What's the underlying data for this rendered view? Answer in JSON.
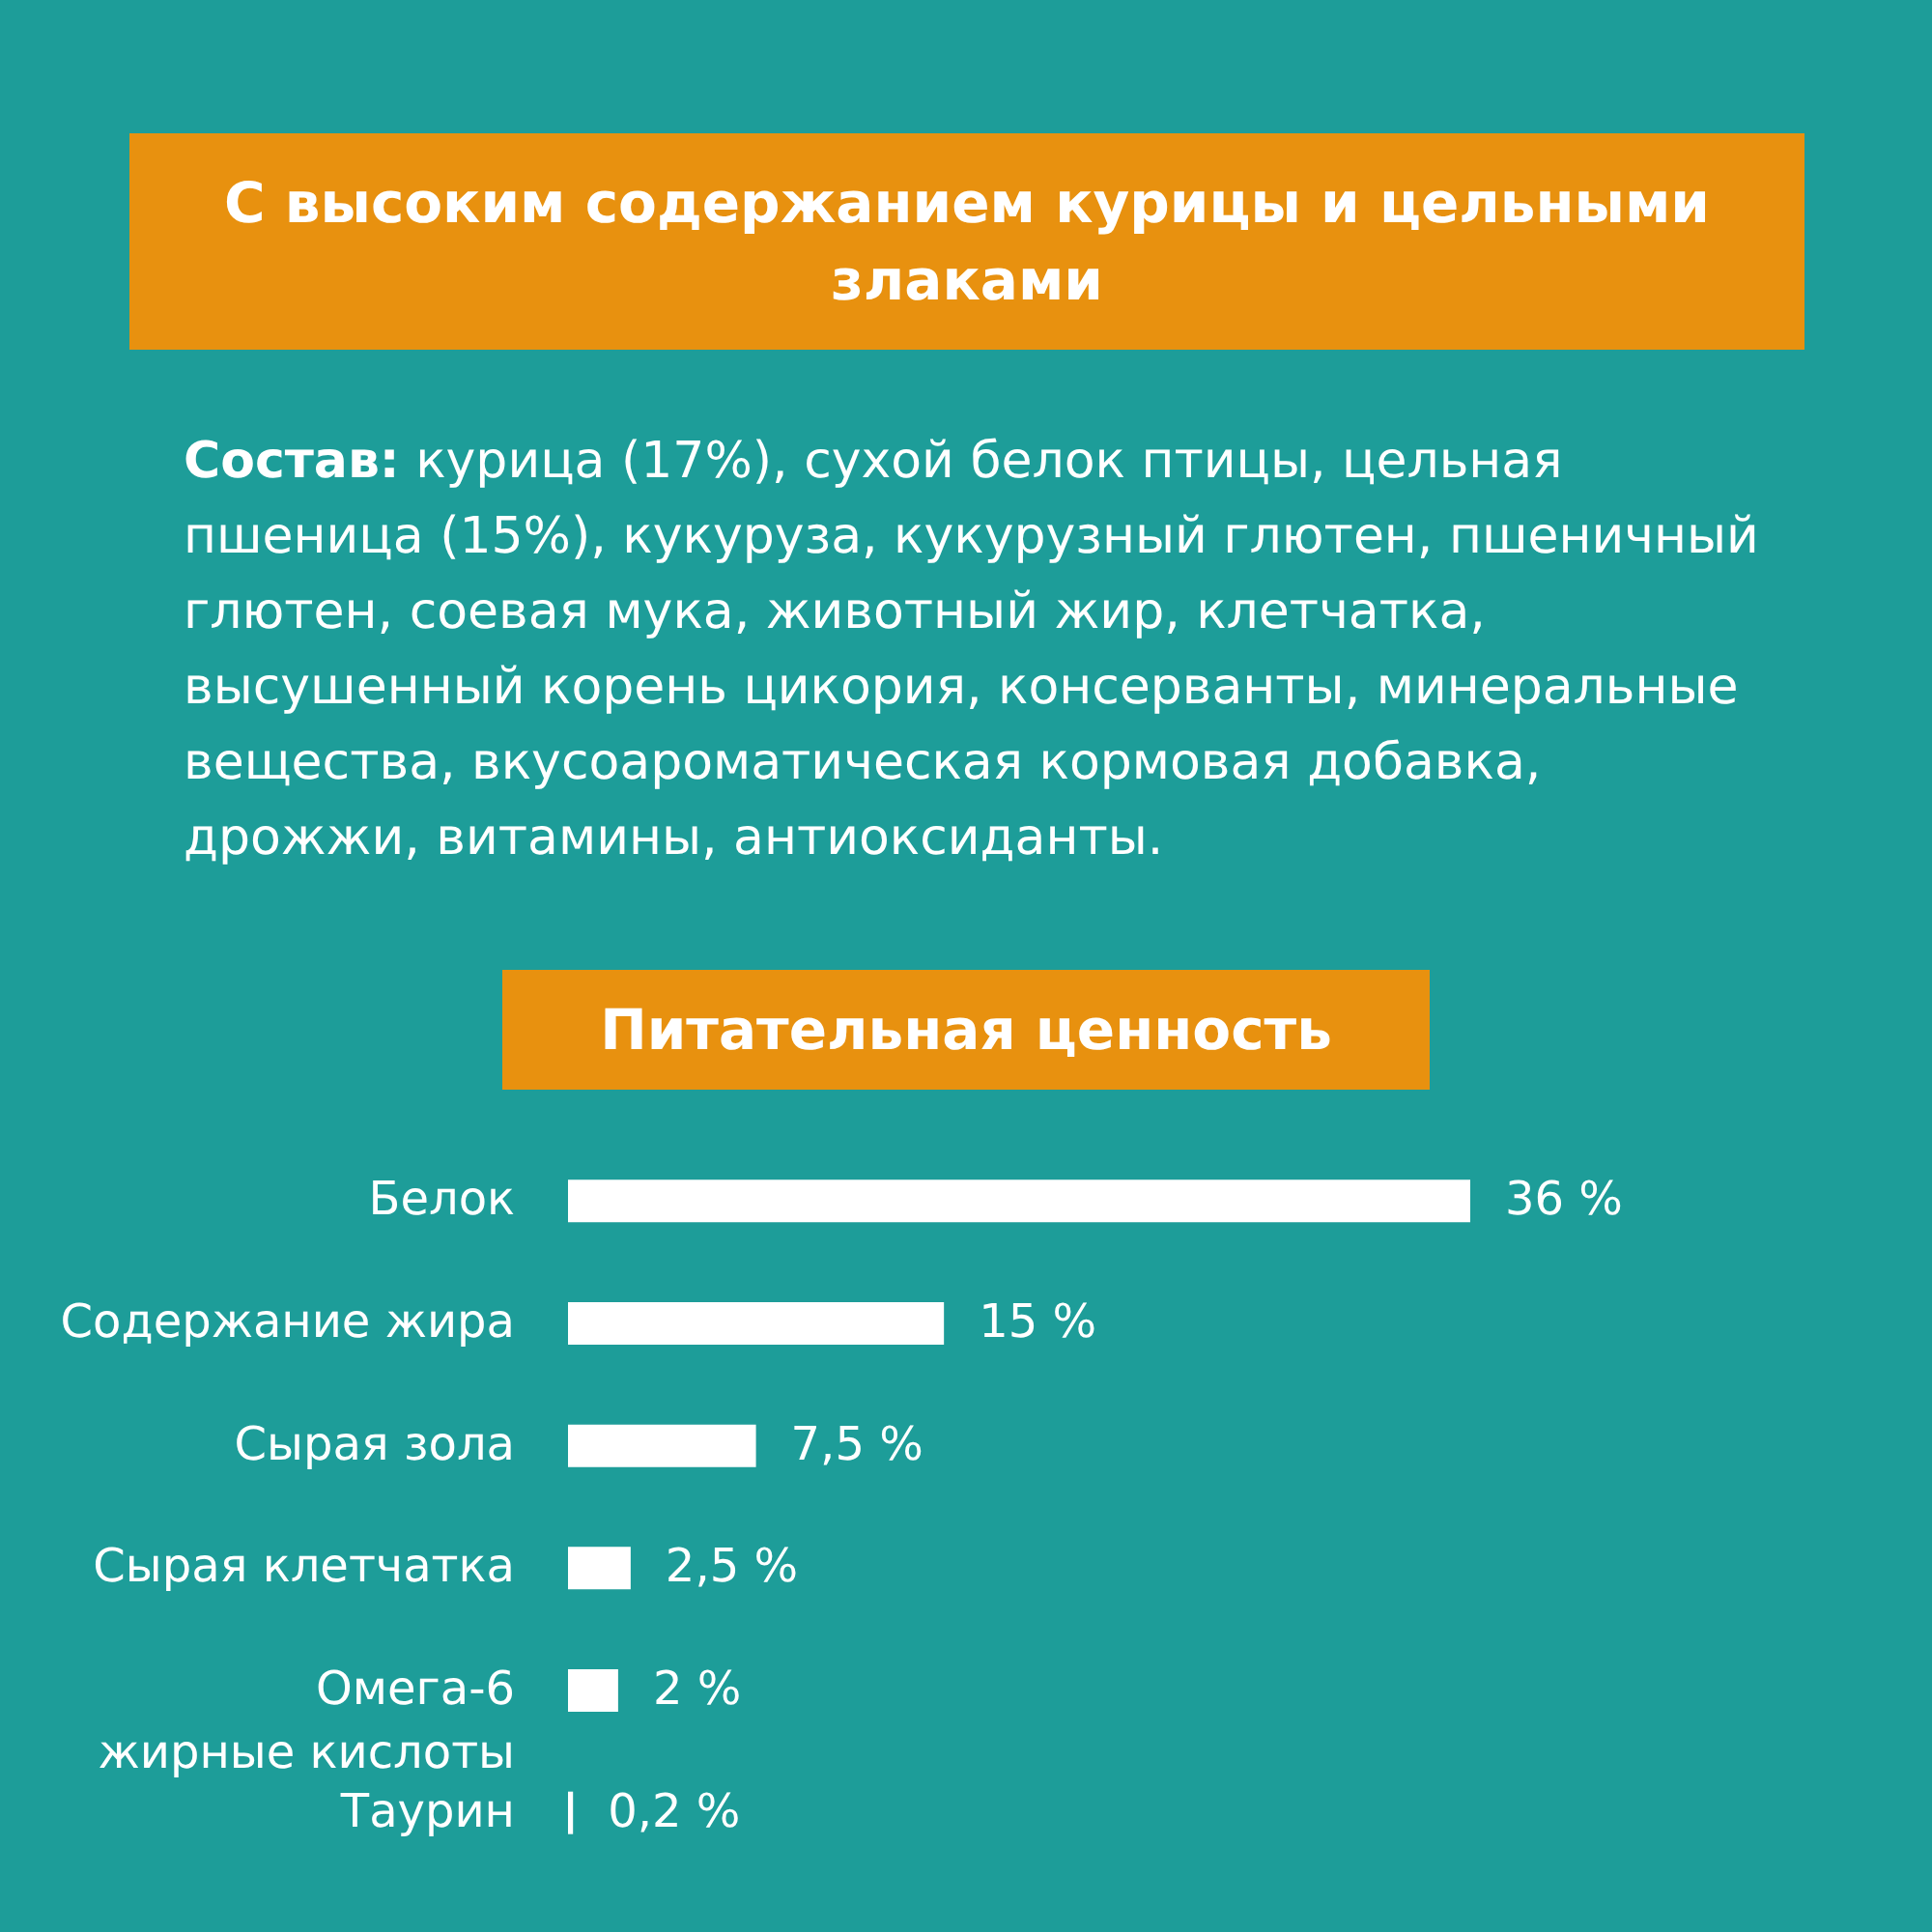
{
  "chart_data": {
    "type": "bar",
    "orientation": "horizontal",
    "title": "С высоким содержанием курицы и цельными злаками",
    "subtitle": "Питательная ценность",
    "annotations": [
      "Состав: курица (17%), сухой белок птицы, цельная пшеница (15%), кукуруза, кукурузный глютен, пшеничный глютен, соевая мука, животный жир, клетчатка, высушенный корень цикория, консерванты, минеральные вещества, вкусоароматическая кормовая добавка, дрожжи, витамины, антиоксиданты."
    ],
    "categories": [
      "Белок",
      "Содержание жира",
      "Сырая зола",
      "Сырая клетчатка",
      "Омега-6 жирные кислоты",
      "Таурин"
    ],
    "values": [
      36,
      15,
      7.5,
      2.5,
      2,
      0.2
    ],
    "value_labels": [
      "36 %",
      "15 %",
      "7,5 %",
      "2,5 %",
      "2 %",
      "0,2 %"
    ],
    "color": "#ffffff"
  }
}
